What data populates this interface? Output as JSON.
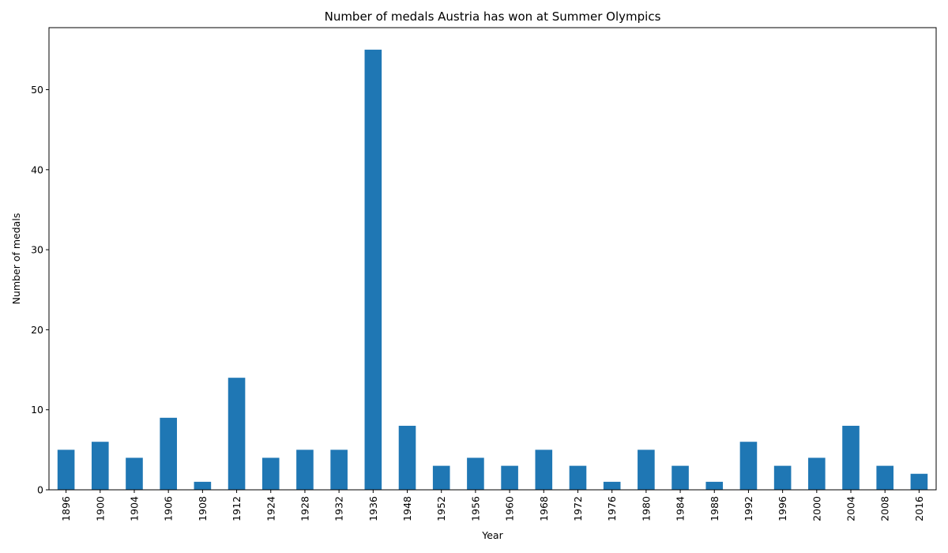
{
  "chart_data": {
    "type": "bar",
    "title": "Number of medals Austria has won at Summer Olympics",
    "xlabel": "Year",
    "ylabel": "Number of medals",
    "categories": [
      "1896",
      "1900",
      "1904",
      "1906",
      "1908",
      "1912",
      "1924",
      "1928",
      "1932",
      "1936",
      "1948",
      "1952",
      "1956",
      "1960",
      "1968",
      "1972",
      "1976",
      "1980",
      "1984",
      "1988",
      "1992",
      "1996",
      "2000",
      "2004",
      "2008",
      "2016"
    ],
    "values": [
      5,
      6,
      4,
      9,
      1,
      14,
      4,
      5,
      5,
      55,
      8,
      3,
      4,
      3,
      5,
      3,
      1,
      5,
      3,
      1,
      6,
      3,
      4,
      8,
      3,
      2
    ],
    "ylim": [
      0,
      57.75
    ],
    "yticks": [
      "0",
      "10",
      "20",
      "30",
      "40",
      "50"
    ],
    "bar_color": "#1f77b4",
    "grid": false,
    "legend": "none"
  }
}
